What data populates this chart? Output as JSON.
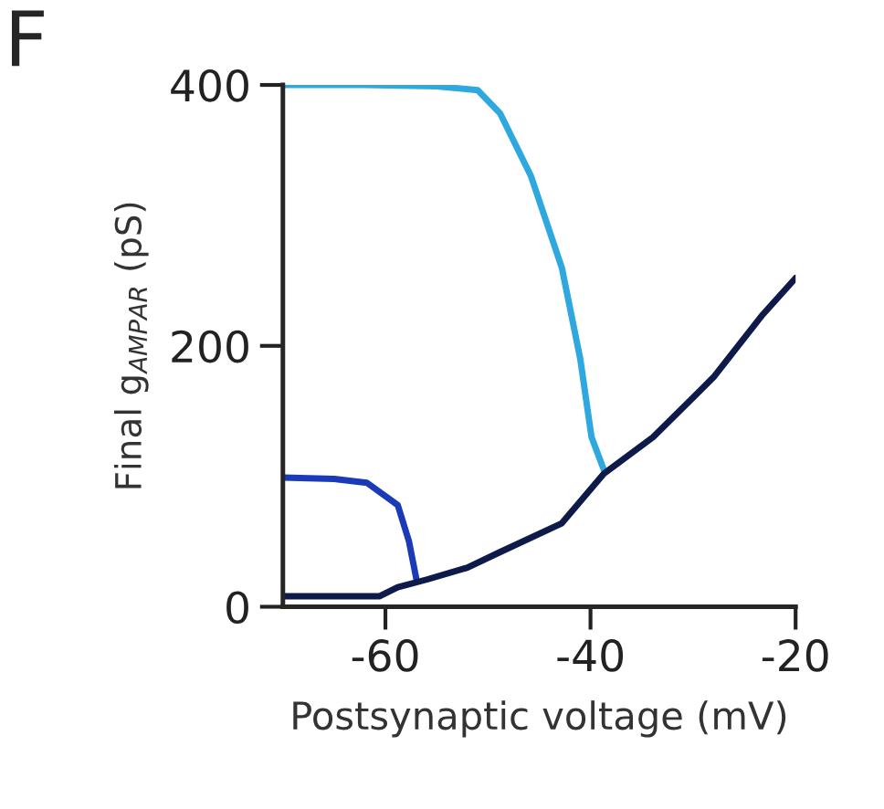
{
  "chart_data": {
    "type": "line",
    "xlabel": "Postsynaptic voltage (mV)",
    "ylabel": "Final g$_{AMPAR}$ (pS)",
    "annotations": [
      "F"
    ],
    "xlim": [
      -70,
      -20
    ],
    "xticks": [
      -60,
      -40,
      -20
    ],
    "ylim": [
      0,
      400
    ],
    "yticks": [
      0,
      200,
      400
    ],
    "grid": false,
    "legend": false,
    "marker": "none",
    "line_style": "solid",
    "series": [
      {
        "color": "#2fa8e0",
        "x": [
          -70,
          -62,
          -55,
          -51,
          -48.8,
          -45.8,
          -42.8,
          -41.0,
          -39.9,
          -38.7
        ],
        "values": [
          400,
          400,
          399,
          396,
          378,
          330,
          260,
          190,
          130,
          105
        ]
      },
      {
        "color": "#1a3ab8",
        "x": [
          -70,
          -65,
          -61.8,
          -58.8,
          -57.7,
          -57.0
        ],
        "values": [
          99,
          98,
          95,
          78,
          50,
          22
        ]
      },
      {
        "color": "#0d1a4a",
        "x": [
          -70,
          -60.6,
          -58.8,
          -55.9,
          -52,
          -48.8,
          -42.8,
          -38.7,
          -33.9,
          -28.0,
          -23.2,
          -20
        ],
        "values": [
          8,
          8,
          15,
          21,
          30,
          42,
          64,
          102,
          130,
          176,
          224,
          252
        ]
      }
    ]
  }
}
